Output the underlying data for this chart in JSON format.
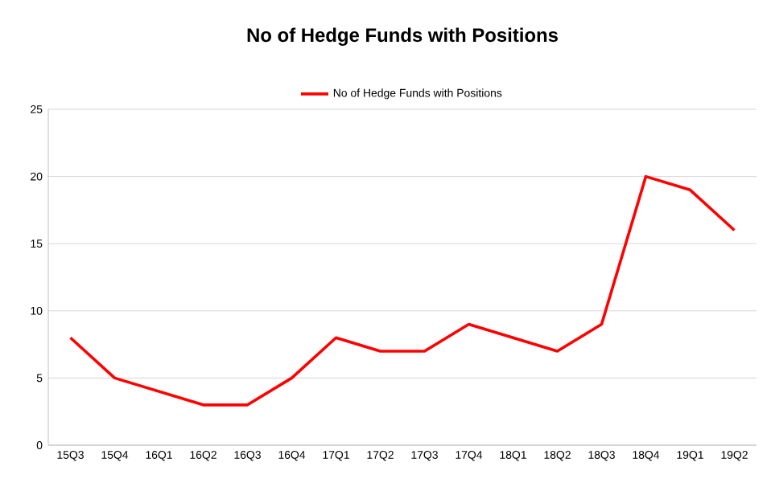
{
  "chart_data": {
    "type": "line",
    "title": "No of Hedge Funds with Positions",
    "categories": [
      "15Q3",
      "15Q4",
      "16Q1",
      "16Q2",
      "16Q3",
      "16Q4",
      "17Q1",
      "17Q2",
      "17Q3",
      "17Q4",
      "18Q1",
      "18Q2",
      "18Q3",
      "18Q4",
      "19Q1",
      "19Q2"
    ],
    "series": [
      {
        "name": "No of Hedge Funds with Positions",
        "color": "#ff0000",
        "values": [
          8,
          5,
          4,
          3,
          3,
          5,
          8,
          7,
          7,
          9,
          8,
          7,
          9,
          20,
          19,
          16
        ]
      }
    ],
    "ylim": [
      0,
      25
    ],
    "yticks": [
      0,
      5,
      10,
      15,
      20,
      25
    ],
    "grid": "y",
    "legend": "top",
    "marker": "none",
    "line_style": "solid"
  }
}
